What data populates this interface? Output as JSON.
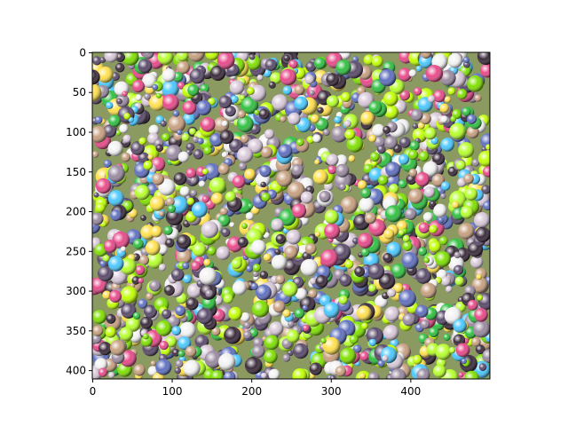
{
  "chart_data": {
    "type": "image",
    "xlim": [
      -0.5,
      499.5
    ],
    "xticks": [
      0,
      100,
      200,
      300,
      400
    ],
    "ylim": [
      410.5,
      -0.5
    ],
    "yticks": [
      0,
      50,
      100,
      150,
      200,
      250,
      300,
      350,
      400
    ]
  }
}
